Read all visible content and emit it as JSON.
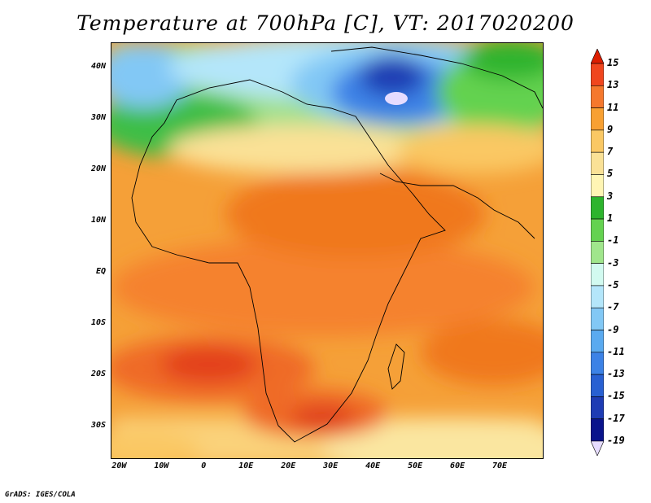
{
  "title": "Temperature at 700hPa [C], VT: 2017020200",
  "credit": "GrADS: IGES/COLA",
  "map": {
    "projection": "lat-lon",
    "lon_range": [
      -22,
      80
    ],
    "lat_range": [
      -36,
      45
    ],
    "lat_labels": [
      {
        "lat": 40,
        "text": "40N"
      },
      {
        "lat": 30,
        "text": "30N"
      },
      {
        "lat": 20,
        "text": "20N"
      },
      {
        "lat": 10,
        "text": "10N"
      },
      {
        "lat": 0,
        "text": "EQ"
      },
      {
        "lat": -10,
        "text": "10S"
      },
      {
        "lat": -20,
        "text": "20S"
      },
      {
        "lat": -30,
        "text": "30S"
      }
    ],
    "lon_labels": [
      {
        "lon": -20,
        "text": "20W"
      },
      {
        "lon": -10,
        "text": "10W"
      },
      {
        "lon": 0,
        "text": "0"
      },
      {
        "lon": 10,
        "text": "10E"
      },
      {
        "lon": 20,
        "text": "20E"
      },
      {
        "lon": 30,
        "text": "30E"
      },
      {
        "lon": 40,
        "text": "40E"
      },
      {
        "lon": 50,
        "text": "50E"
      },
      {
        "lon": 60,
        "text": "60E"
      },
      {
        "lon": 70,
        "text": "70E"
      }
    ]
  },
  "legend": {
    "labels": [
      "15",
      "13",
      "11",
      "9",
      "7",
      "5",
      "3",
      "1",
      "-1",
      "-3",
      "-5",
      "-7",
      "-9",
      "-11",
      "-13",
      "-15",
      "-17",
      "-19"
    ],
    "colors": [
      "#dc1e00",
      "#f0461e",
      "#f5782d",
      "#f8a032",
      "#fac864",
      "#fae196",
      "#fff5b4",
      "#2db42d",
      "#64d250",
      "#a0e68c",
      "#d2faf0",
      "#b4e6fa",
      "#82c8f5",
      "#5aaaf0",
      "#3c82e6",
      "#2860d2",
      "#1e3cb4",
      "#0a148c",
      "#e6dcff"
    ]
  }
}
